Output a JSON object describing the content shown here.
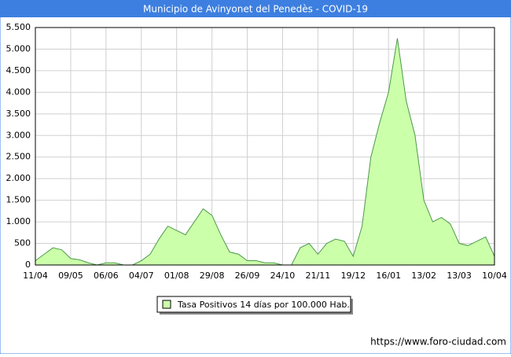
{
  "chart_data": {
    "type": "area",
    "title": "Municipio de Avinyonet del Penedès - COVID-19",
    "categories": [
      "11/04",
      null,
      null,
      null,
      "09/05",
      null,
      null,
      null,
      "06/06",
      null,
      null,
      null,
      "04/07",
      null,
      null,
      null,
      "01/08",
      null,
      null,
      null,
      "29/08",
      null,
      null,
      null,
      "26/09",
      null,
      null,
      null,
      "24/10",
      null,
      null,
      null,
      "21/11",
      null,
      null,
      null,
      "19/12",
      null,
      null,
      null,
      "16/01",
      null,
      null,
      null,
      "13/02",
      null,
      null,
      null,
      "13/03",
      null,
      null,
      null,
      "10/04"
    ],
    "series": [
      {
        "name": "Tasa Positivos 14 días por 100.000 Hab.",
        "color": "#ccffaa",
        "values": [
          100,
          250,
          400,
          350,
          150,
          120,
          50,
          0,
          50,
          50,
          0,
          0,
          100,
          250,
          600,
          900,
          800,
          700,
          1000,
          1300,
          1150,
          700,
          300,
          250,
          100,
          100,
          50,
          50,
          0,
          0,
          400,
          500,
          250,
          500,
          600,
          550,
          200,
          900,
          2500,
          3300,
          4000,
          5250,
          3800,
          3000,
          1500,
          1000,
          1100,
          950,
          500,
          450,
          550,
          650,
          200
        ]
      }
    ],
    "ylim": [
      0,
      5500
    ],
    "yticks": [
      0,
      500,
      {
        "value": 1000,
        "label": "1.000"
      },
      {
        "value": 1500,
        "label": "1.500"
      },
      {
        "value": 2000,
        "label": "2.000"
      },
      {
        "value": 2500,
        "label": "2.500"
      },
      {
        "value": 3000,
        "label": "3.000"
      },
      {
        "value": 3500,
        "label": "3.500"
      },
      {
        "value": 4000,
        "label": "4.000"
      },
      {
        "value": 4500,
        "label": "4.500"
      },
      {
        "value": 5000,
        "label": "5.000"
      },
      {
        "value": 5500,
        "label": "5.500"
      }
    ],
    "grid": true,
    "source": "https://www.foro-ciudad.com"
  }
}
